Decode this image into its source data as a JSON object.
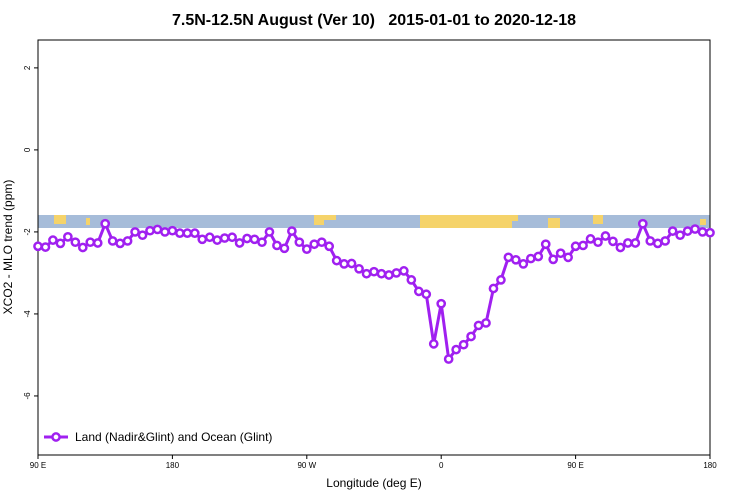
{
  "chart_data": {
    "type": "line",
    "title": "7.5N-12.5N August (Ver 10)   2015-01-01 to 2020-12-18",
    "x_label": "Longitude (deg E)",
    "y_label": "XCO2 - MLO trend (ppm)",
    "x": [
      90,
      95,
      100,
      105,
      110,
      115,
      120,
      125,
      130,
      135,
      140,
      145,
      150,
      155,
      160,
      165,
      170,
      175,
      180,
      185,
      190,
      195,
      200,
      205,
      210,
      215,
      220,
      225,
      230,
      235,
      240,
      245,
      250,
      255,
      260,
      265,
      270,
      275,
      280,
      285,
      290,
      295,
      300,
      305,
      310,
      315,
      320,
      325,
      330,
      335,
      340,
      345,
      350,
      355,
      360,
      365,
      370,
      375,
      380,
      385,
      390,
      395,
      400,
      405,
      410,
      415,
      420,
      425,
      430,
      435,
      440,
      445,
      450,
      455,
      460,
      465,
      470,
      475,
      480,
      485,
      490,
      495,
      500,
      505,
      510,
      515,
      520,
      525,
      530,
      535,
      540
    ],
    "series": [
      {
        "name": "Land (Nadir&Glint) and Ocean (Glint)",
        "color": "#a020f0",
        "values": [
          -2.35,
          -2.37,
          -2.2,
          -2.28,
          -2.12,
          -2.25,
          -2.38,
          -2.25,
          -2.27,
          -1.8,
          -2.22,
          -2.28,
          -2.22,
          -2.0,
          -2.08,
          -1.97,
          -1.94,
          -2.0,
          -1.97,
          -2.03,
          -2.03,
          -2.03,
          -2.18,
          -2.13,
          -2.2,
          -2.15,
          -2.13,
          -2.27,
          -2.16,
          -2.18,
          -2.25,
          -2.0,
          -2.33,
          -2.4,
          -1.98,
          -2.25,
          -2.42,
          -2.3,
          -2.25,
          -2.35,
          -2.7,
          -2.78,
          -2.77,
          -2.9,
          -3.02,
          -2.97,
          -3.02,
          -3.05,
          -3.0,
          -2.95,
          -3.17,
          -3.45,
          -3.52,
          -4.73,
          -3.75,
          -5.1,
          -4.87,
          -4.75,
          -4.55,
          -4.28,
          -4.22,
          -3.38,
          -3.17,
          -2.62,
          -2.68,
          -2.78,
          -2.65,
          -2.6,
          -2.3,
          -2.67,
          -2.52,
          -2.62,
          -2.35,
          -2.33,
          -2.17,
          -2.25,
          -2.1,
          -2.23,
          -2.38,
          -2.27,
          -2.27,
          -1.8,
          -2.22,
          -2.28,
          -2.22,
          -1.98,
          -2.08,
          -1.98,
          -1.93,
          -2.0,
          -2.02
        ]
      }
    ],
    "xlim": [
      90,
      540
    ],
    "ylim": [
      -7.44,
      2.68
    ],
    "xticks": [
      {
        "value": 90,
        "label": "90 E"
      },
      180,
      {
        "value": 270,
        "label": "90 W"
      },
      {
        "value": 360,
        "label": "0"
      },
      {
        "value": 450,
        "label": "90 E"
      },
      {
        "value": 540,
        "label": "180"
      }
    ],
    "yticks": [
      2,
      0,
      -2,
      -4,
      -6
    ],
    "legend": "bottom-left"
  }
}
